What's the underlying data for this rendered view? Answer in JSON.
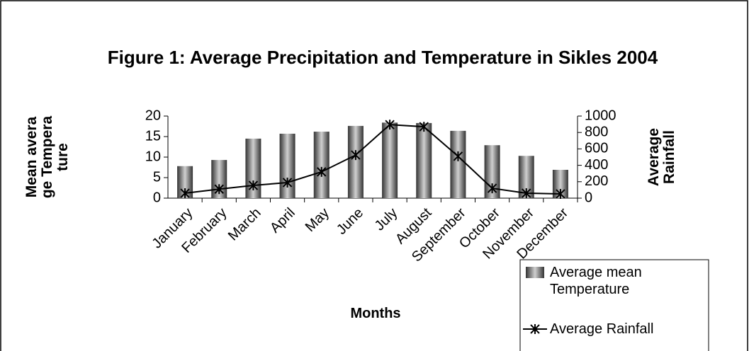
{
  "chart_data": {
    "type": "bar_line",
    "title": "Figure 1: Average Precipitation and Temperature in Sikles 2004",
    "y_label": "Mean average Temperature",
    "y2_label": "Average Rainfall",
    "x_label": "Months",
    "categories": [
      "January",
      "February",
      "March",
      "April",
      "May",
      "June",
      "July",
      "August",
      "September",
      "October",
      "November",
      "December"
    ],
    "series": [
      {
        "name": "Average mean Temperature",
        "type": "bar",
        "color": "#333333",
        "values": [
          7.8,
          9.3,
          14.5,
          15.7,
          16.2,
          17.6,
          18.4,
          18.3,
          16.4,
          12.9,
          10.3,
          6.9
        ]
      },
      {
        "name": "Average Rainfall",
        "type": "line",
        "axis": "y2",
        "color": "#000000",
        "values": [
          60,
          110,
          155,
          190,
          320,
          525,
          895,
          870,
          510,
          120,
          60,
          52
        ]
      }
    ],
    "ylim": [
      0,
      20
    ],
    "yticks": [
      0,
      5,
      10,
      15,
      20
    ],
    "y2lim": [
      0,
      1000
    ],
    "y2ticks": [
      0,
      200,
      400,
      600,
      800,
      1000
    ],
    "legend": "lower right"
  }
}
